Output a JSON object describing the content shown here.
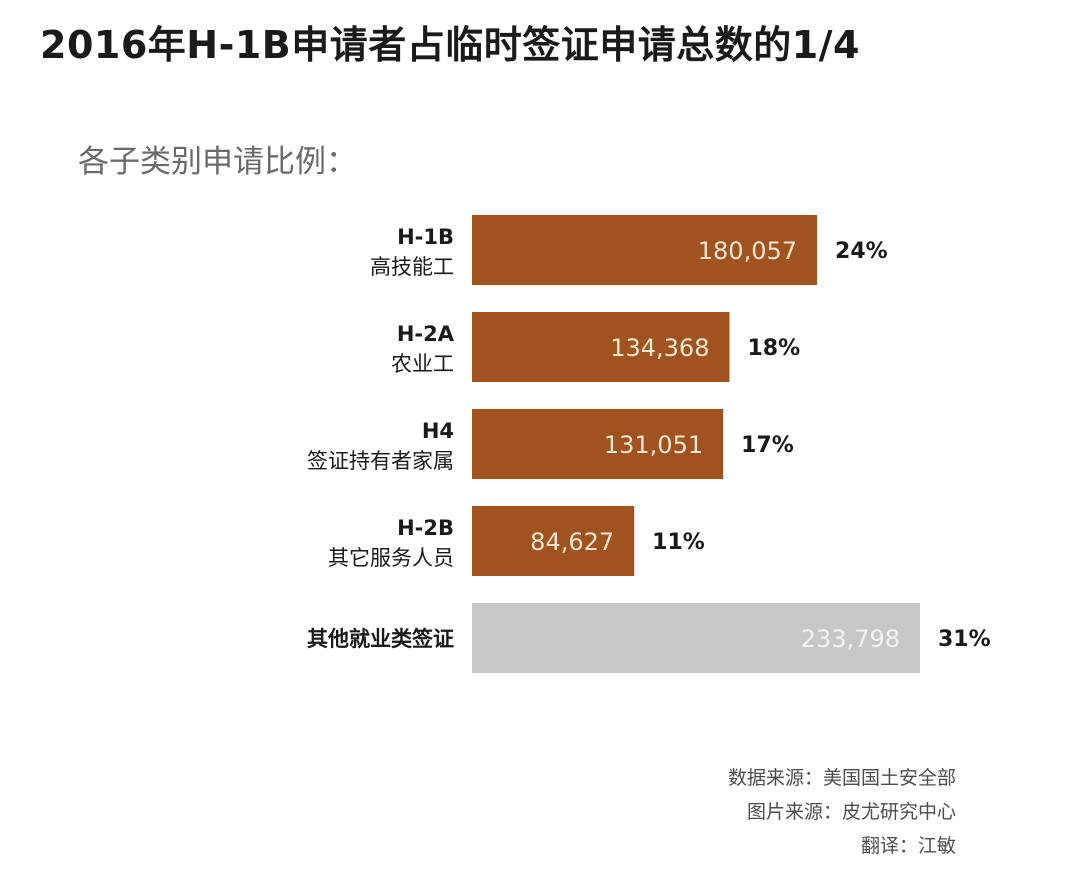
{
  "title": "2016年H-1B申请者占临时签证申请总数的1/4",
  "subtitle": "各子类别申请比例：",
  "chart_data": {
    "type": "bar",
    "orientation": "horizontal",
    "categories": [
      {
        "code": "H-1B",
        "name": "高技能工"
      },
      {
        "code": "H-2A",
        "name": "农业工"
      },
      {
        "code": "H4",
        "name": "签证持有者家属"
      },
      {
        "code": "H-2B",
        "name": "其它服务人员"
      },
      {
        "code": "",
        "name": "其他就业类签证"
      }
    ],
    "values": [
      180057,
      134368,
      131051,
      84627,
      233798
    ],
    "value_labels": [
      "180,057",
      "134,368",
      "131,051",
      "84,627",
      "233,798"
    ],
    "percent_labels": [
      "24%",
      "18%",
      "17%",
      "11%",
      "31%"
    ],
    "colors": [
      "#a0531e",
      "#a0531e",
      "#a0531e",
      "#a0531e",
      "#c7c7c7"
    ],
    "xlim": [
      0,
      233798
    ]
  },
  "sources": {
    "data": "数据来源：美国国土安全部",
    "image": "图片来源：皮尤研究中心",
    "translator": "翻译：江敏"
  }
}
